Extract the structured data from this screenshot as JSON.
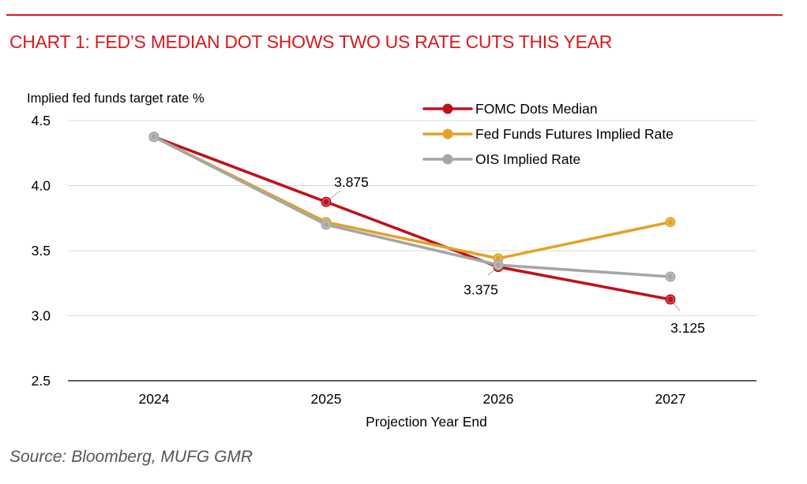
{
  "header": {
    "title": "CHART 1: FED’S MEDIAN DOT SHOWS TWO US RATE CUTS THIS YEAR"
  },
  "footer": {
    "source": "Source: Bloomberg, MUFG GMR"
  },
  "colors": {
    "title": "#d71920",
    "fomc": "#c0111c",
    "futures": "#e0a32a",
    "ois": "#a6a6a6"
  },
  "chart_data": {
    "type": "line",
    "title": "CHART 1: FED’S MEDIAN DOT SHOWS TWO US RATE CUTS THIS YEAR",
    "ylabel": "Implied fed funds target rate %",
    "xlabel": "Projection Year End",
    "categories": [
      "2024",
      "2025",
      "2026",
      "2027"
    ],
    "ylim": [
      2.5,
      4.5
    ],
    "yticks": [
      "2.5",
      "3.0",
      "3.5",
      "4.0",
      "4.5"
    ],
    "grid": "horizontal",
    "legend_position": "top-right",
    "series": [
      {
        "name": "FOMC Dots Median",
        "color": "#c0111c",
        "values": [
          4.375,
          3.875,
          3.375,
          3.125
        ]
      },
      {
        "name": "Fed Funds Futures Implied Rate",
        "color": "#e0a32a",
        "values": [
          4.375,
          3.72,
          3.44,
          3.72
        ]
      },
      {
        "name": "OIS Implied Rate",
        "color": "#a6a6a6",
        "values": [
          4.375,
          3.7,
          3.39,
          3.3
        ]
      }
    ],
    "annotations": [
      {
        "text": "3.875",
        "series": 0,
        "index": 1
      },
      {
        "text": "3.375",
        "series": 0,
        "index": 2
      },
      {
        "text": "3.125",
        "series": 0,
        "index": 3
      }
    ]
  }
}
